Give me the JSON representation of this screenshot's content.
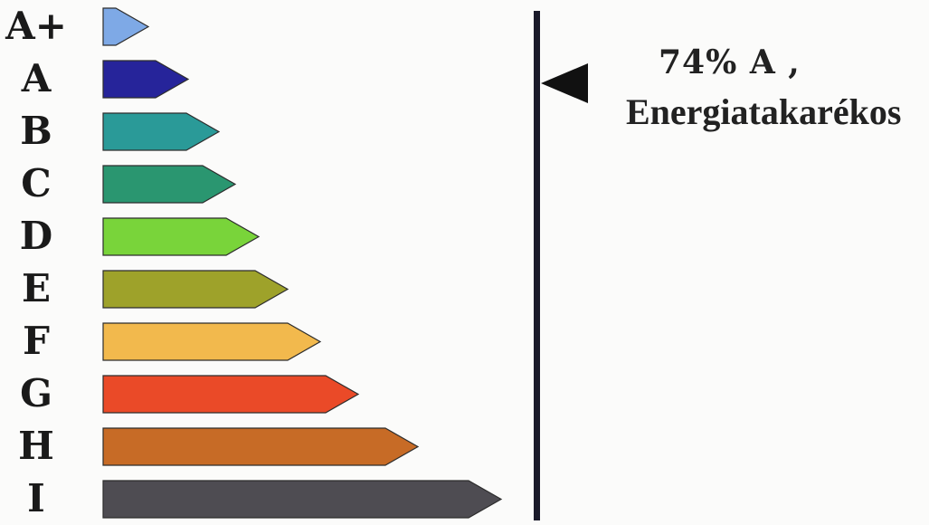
{
  "classes": [
    {
      "label": "A+",
      "color": "#7ea9e6"
    },
    {
      "label": "A",
      "color": "#26249a"
    },
    {
      "label": "B",
      "color": "#2a9a98"
    },
    {
      "label": "C",
      "color": "#2a9670"
    },
    {
      "label": "D",
      "color": "#79d43a"
    },
    {
      "label": "E",
      "color": "#9ea22a"
    },
    {
      "label": "F",
      "color": "#f2b94d"
    },
    {
      "label": "G",
      "color": "#ea4a28"
    },
    {
      "label": "H",
      "color": "#c76b26"
    },
    {
      "label": "I",
      "color": "#4e4c52"
    }
  ],
  "rating": {
    "line": "74%  A ,",
    "description": "Energiatakarékos",
    "selected_class": "A"
  }
}
